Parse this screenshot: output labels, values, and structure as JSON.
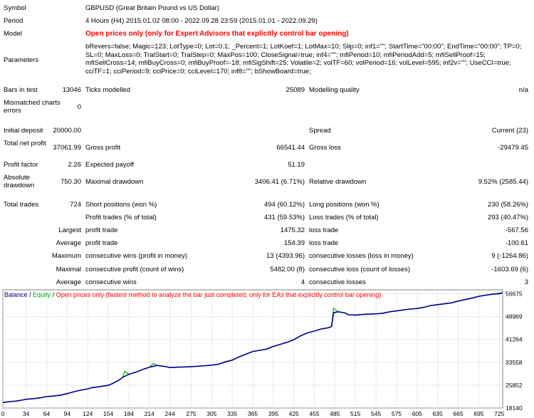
{
  "report": {
    "symbol_label": "Symbol",
    "symbol_value": "GBPUSD (Great Britain Pound vs US Dollar)",
    "period_label": "Period",
    "period_value": "4 Hours (H4) 2015.01.02 08:00 - 2022.09.28 23:59 (2015.01.01 - 2022.09.29)",
    "model_label": "Model",
    "model_value": "Open prices only (only for Expert Advisors that explicitly control bar opening)",
    "parameters_label": "Parameters",
    "parameters_value": "bRevers=false; Magic=123; LotType=0; Lot=0.1; _Percent=1; LotKoef=1; LotMax=10; Slip=0; inf1=\"\"; StartTime=\"00:00\"; EndTime=\"00:00\"; TP=0; SL=0; MaxLoss=0; TralStart=0; TralStep=0; MaxPos=100; CloseSignal=true; inf4=\"\"; mfiPeriod=10; mfiPeriodAdd=5; mfiSellProof=15; mfiSellCross=14; mfiBuyCross=0; mfiBuyProof=-18; mfiSigShift=25; Volatile=2; volTF=60; volPeriod=16; volLevel=595; inf2v=\"\"; UseCCI=true; cciTF=1; cciPeriod=9; cciPrice=0; cciLevel=170; inf8=\"\"; bShowBoard=true;",
    "bars_label": "Bars in test",
    "bars_value": "13046",
    "ticks_label": "Ticks modelled",
    "ticks_value": "25089",
    "quality_label": "Modelling quality",
    "quality_value": "n/a",
    "mismatch_label": "Mismatched charts errors",
    "mismatch_value": "0",
    "deposit_label": "Initial deposit",
    "deposit_value": "20000.00",
    "spread_label": "Spread",
    "spread_value": "Current (23)",
    "netprofit_label": "Total net profit",
    "netprofit_value": "37061.99",
    "grossprofit_label": "Gross profit",
    "grossprofit_value": "66541.44",
    "grossloss_label": "Gross loss",
    "grossloss_value": "-29479.45",
    "pf_label": "Profit factor",
    "pf_value": "2.26",
    "payoff_label": "Expected payoff",
    "payoff_value": "51.19",
    "absdd_label": "Absolute drawdown",
    "absdd_value": "750.30",
    "maxdd_label": "Maximal drawdown",
    "maxdd_value": "3406.41 (6.71%)",
    "reldd_label": "Relative drawdown",
    "reldd_value": "9.52% (2585.44)",
    "trades_label": "Total trades",
    "trades_value": "724",
    "short_label": "Short positions (won %)",
    "short_value": "494 (60.12%)",
    "long_label": "Long positions (won %)",
    "long_value": "230 (58.26%)",
    "profittrades_label": "Profit trades (% of total)",
    "profittrades_value": "431 (59.53%)",
    "losstrades_label": "Loss trades (% of total)",
    "losstrades_value": "293 (40.47%)",
    "largest_label": "Largest",
    "largest_profit_label": "profit trade",
    "largest_profit_value": "1475.32",
    "largest_loss_label": "loss trade",
    "largest_loss_value": "-567.56",
    "average_label": "Average",
    "average_profit_label": "profit trade",
    "average_profit_value": "154.39",
    "average_loss_label": "loss trade",
    "average_loss_value": "-100.61",
    "maximum_label": "Maximum",
    "max_wins_label": "consecutive wins (profit in money)",
    "max_wins_value": "13 (4393.96)",
    "max_losses_label": "consecutive losses (loss in money)",
    "max_losses_value": "9 (-1264.86)",
    "maximal_label": "Maximal",
    "maximal_profit_label": "consecutive profit (count of wins)",
    "maximal_profit_value": "5482.00 (8)",
    "maximal_loss_label": "consecutive loss (count of losses)",
    "maximal_loss_value": "-1603.69 (6)",
    "avg2_label": "Average",
    "avg_wins_label": "consecutive wins",
    "avg_wins_value": "4",
    "avg_losses_label": "consecutive losses",
    "avg_losses_value": "3"
  },
  "chart_legend": {
    "balance": "Balance",
    "sep1": " / ",
    "equity": "Equity",
    "sep2": " / ",
    "note": "Open prices only (fastest method to analyze the bar just completed, only for EAs that explicitly control bar opening)"
  },
  "colors": {
    "balance": "#00008b",
    "equity": "#00b000",
    "note": "#ff0000",
    "grid": "#c0c0c0"
  },
  "chart_data": {
    "type": "line",
    "x_ticks": [
      0,
      34,
      64,
      94,
      124,
      154,
      184,
      214,
      244,
      275,
      305,
      335,
      365,
      395,
      425,
      455,
      485,
      515,
      545,
      575,
      605,
      635,
      665,
      695,
      725
    ],
    "y_ticks": [
      18140,
      25852,
      33558,
      41264,
      48969,
      56675
    ],
    "xlim": [
      0,
      730
    ],
    "ylim": [
      18140,
      58000
    ],
    "series": [
      {
        "name": "Balance",
        "x": [
          0,
          10,
          20,
          30,
          34,
          45,
          55,
          64,
          75,
          85,
          94,
          100,
          110,
          124,
          130,
          140,
          154,
          160,
          170,
          175,
          184,
          195,
          205,
          214,
          225,
          235,
          244,
          255,
          265,
          275,
          290,
          305,
          315,
          325,
          335,
          345,
          355,
          365,
          375,
          385,
          395,
          405,
          415,
          425,
          435,
          445,
          455,
          465,
          475,
          480,
          483,
          490,
          500,
          505,
          515,
          525,
          535,
          545,
          555,
          565,
          575,
          590,
          605,
          615,
          625,
          635,
          645,
          655,
          665,
          675,
          685,
          695,
          705,
          715,
          725,
          730
        ],
        "values": [
          20000,
          20300,
          20500,
          20900,
          21100,
          21300,
          21600,
          22000,
          22200,
          22500,
          23000,
          23400,
          24000,
          24600,
          25000,
          25300,
          25800,
          26400,
          27600,
          28500,
          29500,
          30300,
          31200,
          31900,
          32500,
          32200,
          31800,
          31900,
          32000,
          32100,
          32300,
          32600,
          32900,
          33700,
          34300,
          35400,
          36300,
          37200,
          37600,
          38000,
          38900,
          39600,
          40300,
          41200,
          42500,
          43500,
          44100,
          44800,
          45200,
          45600,
          50300,
          50600,
          50200,
          49600,
          49500,
          49700,
          49800,
          49900,
          50100,
          50600,
          50900,
          51400,
          51700,
          52100,
          52700,
          53000,
          53300,
          53600,
          54200,
          54700,
          55200,
          55800,
          56200,
          56500,
          56700,
          57000
        ]
      },
      {
        "name": "Equity",
        "x": [
          0,
          10,
          20,
          30,
          34,
          45,
          55,
          64,
          75,
          85,
          94,
          100,
          110,
          124,
          130,
          140,
          154,
          160,
          170,
          175,
          178,
          184,
          195,
          205,
          214,
          220,
          225,
          235,
          244,
          255,
          265,
          275,
          290,
          305,
          315,
          325,
          335,
          345,
          355,
          365,
          375,
          385,
          395,
          405,
          415,
          425,
          435,
          445,
          455,
          465,
          475,
          480,
          483,
          490,
          500,
          505,
          515,
          525,
          535,
          545,
          555,
          565,
          575,
          590,
          605,
          615,
          625,
          635,
          645,
          655,
          665,
          675,
          685,
          695,
          705,
          715,
          725,
          730
        ],
        "values": [
          20000,
          20300,
          20500,
          20900,
          21100,
          21300,
          21600,
          22000,
          22200,
          22500,
          23000,
          23400,
          24000,
          24600,
          25000,
          25300,
          25800,
          26400,
          27600,
          28500,
          30600,
          29500,
          30300,
          31200,
          31900,
          33200,
          32500,
          32200,
          31800,
          31900,
          32000,
          32100,
          32300,
          32600,
          32900,
          33700,
          34300,
          35400,
          36300,
          37200,
          37600,
          38000,
          38900,
          39600,
          40300,
          41200,
          42500,
          43500,
          44100,
          44800,
          45200,
          45600,
          51800,
          50600,
          50200,
          49600,
          49500,
          49700,
          49800,
          49900,
          50100,
          50600,
          50900,
          51400,
          51700,
          52100,
          52700,
          53000,
          53300,
          53600,
          54200,
          54700,
          55200,
          55800,
          56200,
          56500,
          56900,
          57000
        ]
      }
    ]
  }
}
